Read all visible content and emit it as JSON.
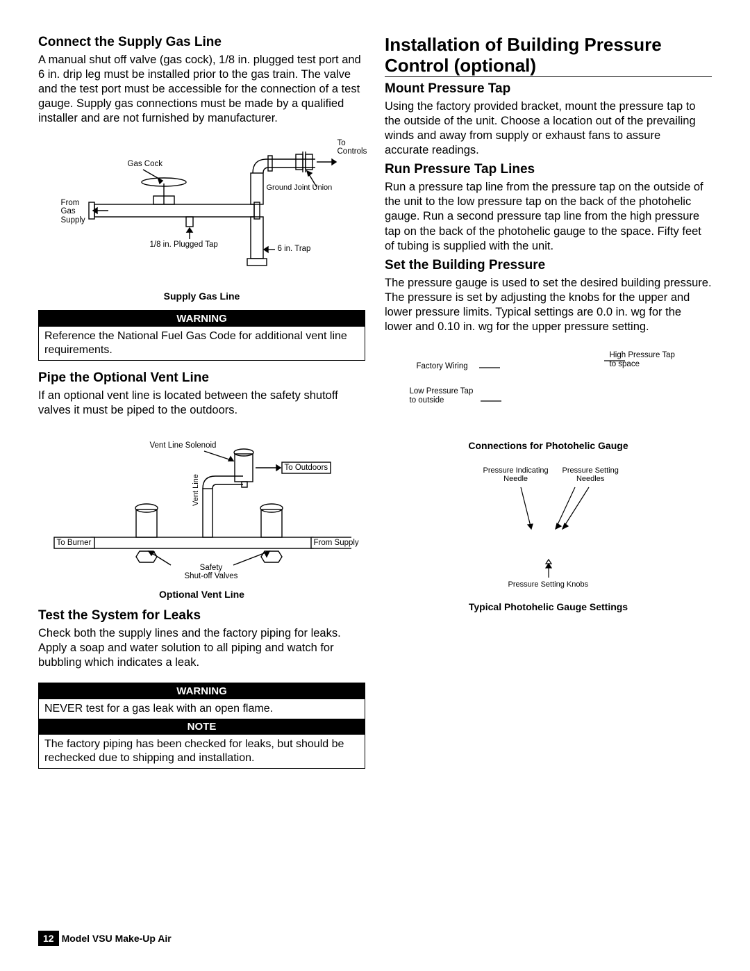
{
  "left": {
    "h1_connect": "Connect the Supply Gas Line",
    "p_connect": "A manual shut off valve (gas cock), 1/8 in. plugged test port and 6 in. drip leg must be installed prior to the gas train. The valve and the test port must be accessible for the connection of a test gauge. Supply gas connections must be made by a qualified installer and are not furnished by manufacturer.",
    "fig1": {
      "caption": "Supply Gas Line",
      "labels": {
        "gas_cock": "Gas Cock",
        "to_controls": "To\nControls",
        "from_gas": "From\nGas\nSupply",
        "ground_union": "Ground Joint Union",
        "plugged_tap": "1/8 in. Plugged Tap",
        "trap": "6 in. Trap"
      }
    },
    "warn1_head": "WARNING",
    "warn1_body": "Reference the National Fuel Gas Code for additional vent line requirements.",
    "h2_pipe": "Pipe the Optional Vent Line",
    "p_pipe": "If an optional vent line is located between the safety shutoff valves it must be piped to the outdoors.",
    "fig2": {
      "caption": "Optional Vent Line",
      "labels": {
        "vent_solenoid": "Vent Line Solenoid",
        "to_outdoors": "To Outdoors",
        "to_burner": "To Burner",
        "from_supply": "From Supply",
        "vent_line": "Vent Line",
        "safety_valves": "Safety\nShut-off Valves"
      }
    },
    "h2_test": "Test the System for Leaks",
    "p_test": "Check both the supply lines and the factory piping for leaks. Apply a soap and water solution to all piping and watch for bubbling which indicates a leak.",
    "warn2_head": "WARNING",
    "warn2_body": "NEVER test for a gas leak with an open flame.",
    "note_head": "NOTE",
    "note_body": "The factory piping has been checked for leaks, but should be rechecked due to shipping and installation."
  },
  "right": {
    "h1_install": "Installation of Building Pressure Control (optional)",
    "h2_mount": "Mount Pressure Tap",
    "p_mount": "Using the factory provided bracket, mount the pressure tap to the outside of the unit. Choose a location out of the prevailing winds and away from supply or exhaust fans to assure accurate readings.",
    "h2_run": "Run Pressure Tap Lines",
    "p_run": "Run a pressure tap line from the pressure tap on the outside of the unit to the low pressure tap on the back of the photohelic gauge. Run a second pressure tap line from the high pressure tap on the back of the photohelic gauge to the space. Fifty feet of tubing is supplied with the unit.",
    "h2_set": "Set the Building Pressure",
    "p_set": "The pressure gauge is used to set the desired building pressure. The pressure is set by adjusting the knobs for the upper and lower pressure limits. Typical settings are 0.0 in. wg for the lower and 0.10 in. wg for the upper pressure setting.",
    "fig3": {
      "caption": "Connections for Photohelic Gauge",
      "labels": {
        "factory_wiring": "Factory Wiring",
        "high_pressure": "High Pressure Tap\nto space",
        "low_pressure": "Low Pressure Tap\nto outside"
      }
    },
    "fig4": {
      "caption": "Typical Photohelic Gauge Settings",
      "labels": {
        "indicating_needle": "Pressure Indicating\nNeedle",
        "setting_needles": "Pressure Setting\nNeedles",
        "setting_knobs": "Pressure Setting Knobs"
      }
    }
  },
  "footer": {
    "page": "12",
    "text": "Model VSU Make-Up Air"
  }
}
